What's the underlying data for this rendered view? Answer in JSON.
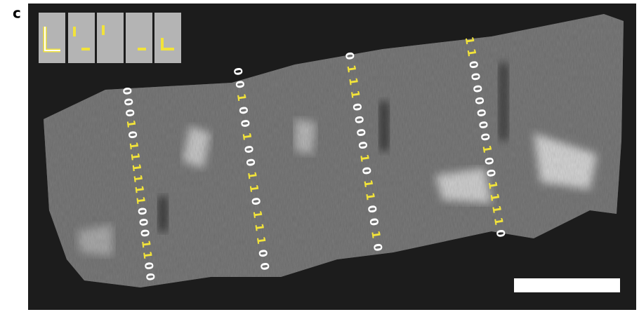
{
  "panel_label": "c",
  "one_color": "#f2e33a",
  "zero_color": "#ffffff",
  "columns": [
    {
      "digits": [
        "0",
        "0",
        "0",
        "1",
        "0",
        "1",
        "1",
        "1",
        "1",
        "1",
        "1",
        "0",
        "0",
        "0",
        "1",
        "1",
        "0",
        "0"
      ]
    },
    {
      "digits": [
        "0",
        "0",
        "1",
        "0",
        "0",
        "1",
        "0",
        "0",
        "1",
        "1",
        "0",
        "1",
        "1",
        "1",
        "0",
        "0"
      ]
    },
    {
      "digits": [
        "0",
        "1",
        "1",
        "1",
        "0",
        "0",
        "0",
        "0",
        "1",
        "0",
        "1",
        "1",
        "0",
        "0",
        "1",
        "0"
      ]
    },
    {
      "digits": [
        "1",
        "1",
        "0",
        "0",
        "0",
        "0",
        "0",
        "0",
        "0",
        "1",
        "0",
        "0",
        "1",
        "1",
        "1",
        "1",
        "0"
      ]
    }
  ]
}
